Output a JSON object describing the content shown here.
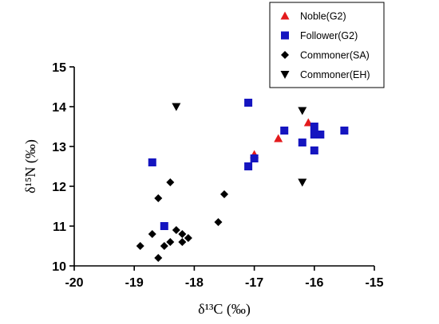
{
  "chart_data": {
    "type": "scatter",
    "xlabel": "δ¹³C (‰)",
    "ylabel": "δ¹⁵N (‰)",
    "xlim": [
      -20,
      -15
    ],
    "ylim": [
      10,
      15
    ],
    "xticks": [
      -20,
      -19,
      -18,
      -17,
      -16,
      -15
    ],
    "yticks": [
      10,
      11,
      12,
      13,
      14,
      15
    ],
    "x_tick_labels": [
      "-20",
      "-19",
      "-18",
      "-17",
      "-16",
      "-15"
    ],
    "y_tick_labels": [
      "10",
      "11",
      "12",
      "13",
      "14",
      "15"
    ],
    "grid": false,
    "legend_position": "top-right",
    "series": [
      {
        "name": "Noble(G2)",
        "marker": "triangle-up",
        "color": "#e31a1c",
        "points": [
          [
            -16.6,
            13.2
          ],
          [
            -17.0,
            12.8
          ],
          [
            -16.1,
            13.6
          ]
        ]
      },
      {
        "name": "Follower(G2)",
        "marker": "square",
        "color": "#1515c0",
        "points": [
          [
            -17.1,
            14.1
          ],
          [
            -18.7,
            12.6
          ],
          [
            -17.1,
            12.5
          ],
          [
            -17.0,
            12.7
          ],
          [
            -16.5,
            13.4
          ],
          [
            -16.2,
            13.1
          ],
          [
            -16.0,
            13.5
          ],
          [
            -16.0,
            13.3
          ],
          [
            -15.9,
            13.3
          ],
          [
            -16.0,
            12.9
          ],
          [
            -15.5,
            13.4
          ],
          [
            -18.5,
            11.0
          ]
        ]
      },
      {
        "name": "Commoner(SA)",
        "marker": "diamond",
        "color": "#000000",
        "points": [
          [
            -18.4,
            12.1
          ],
          [
            -18.6,
            11.7
          ],
          [
            -17.5,
            11.8
          ],
          [
            -17.6,
            11.1
          ],
          [
            -18.9,
            10.5
          ],
          [
            -18.7,
            10.8
          ],
          [
            -18.6,
            10.2
          ],
          [
            -18.5,
            10.5
          ],
          [
            -18.4,
            10.6
          ],
          [
            -18.3,
            10.9
          ],
          [
            -18.2,
            10.8
          ],
          [
            -18.2,
            10.6
          ],
          [
            -18.1,
            10.7
          ]
        ]
      },
      {
        "name": "Commoner(EH)",
        "marker": "triangle-down",
        "color": "#000000",
        "points": [
          [
            -18.3,
            14.0
          ],
          [
            -16.2,
            13.9
          ],
          [
            -16.2,
            12.1
          ]
        ]
      }
    ]
  }
}
